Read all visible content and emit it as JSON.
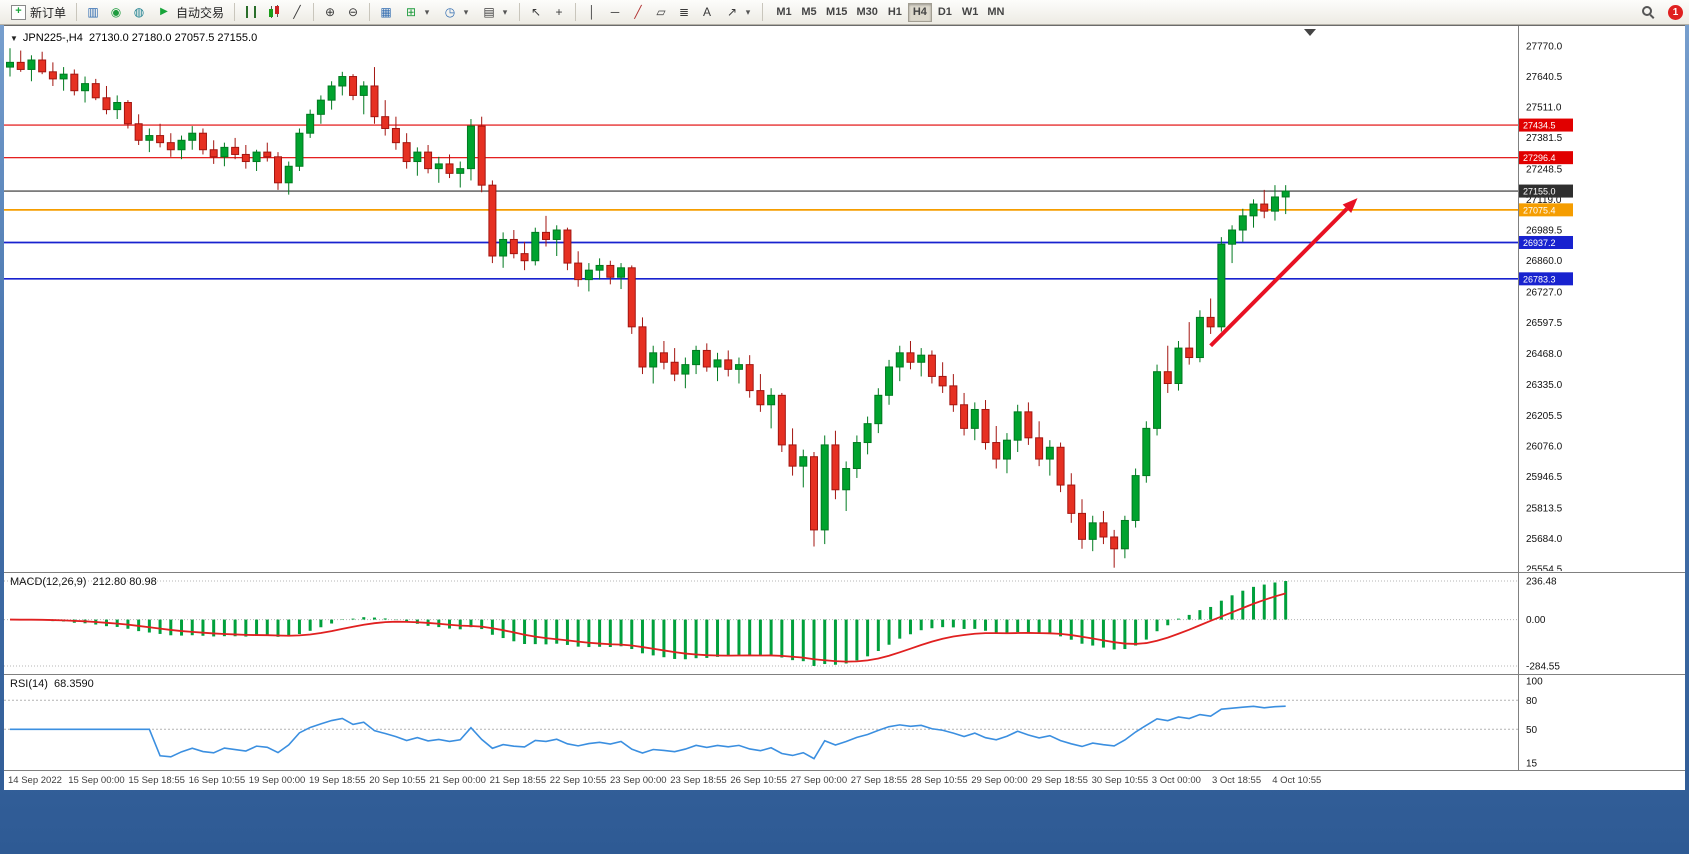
{
  "toolbar": {
    "new_order_label": "新订单",
    "auto_trading_label": "自动交易",
    "timeframes": [
      "M1",
      "M5",
      "M15",
      "M30",
      "H1",
      "H4",
      "D1",
      "W1",
      "MN"
    ],
    "active_timeframe": "H4",
    "notification_count": "1",
    "glyphs": {
      "chart_menu": "▼",
      "new_order": "+",
      "charts": "▥",
      "alerts": "◉",
      "community": "◍",
      "auto_trading": "▶",
      "line_chart": "╱",
      "zoom_in": "⊕",
      "zoom_out": "⊖",
      "tile_windows": "▦",
      "indicators": "⊞",
      "periods": "◷",
      "templates": "▤",
      "dropdown": "▾",
      "cursor": "↖",
      "crosshair": "+",
      "vline": "│",
      "hline": "─",
      "trendline": "╱",
      "channel": "▱",
      "fibonacci": "≣",
      "text_tool": "A",
      "arrows_tool": "↗"
    }
  },
  "chart": {
    "symbol_period": "JPN225-,H4",
    "ohlc": "27130.0 27180.0 27057.5 27155.0"
  },
  "chart_data": {
    "type": "candlestick",
    "title": "JPN225-,H4",
    "symbol": "JPN225-",
    "period": "H4",
    "last_ohlc": {
      "open": 27130.0,
      "high": 27180.0,
      "low": 27057.5,
      "close": 27155.0
    },
    "price_ticks": [
      27770.0,
      27640.5,
      27511.0,
      27381.5,
      27248.5,
      27119.0,
      26989.5,
      26860.0,
      26727.0,
      26597.5,
      26468.0,
      26335.0,
      26205.5,
      26076.0,
      25946.5,
      25813.5,
      25684.0,
      25554.5
    ],
    "hlines": [
      {
        "value": 27434.5,
        "label": "27434.5",
        "color": "#e10000",
        "width": 1.2
      },
      {
        "value": 27296.4,
        "label": "27296.4",
        "color": "#e10000",
        "width": 1.2
      },
      {
        "value": 27155.0,
        "label": "27155.0",
        "color": "#2f2f2f",
        "width": 1.2
      },
      {
        "value": 27075.4,
        "label": "27075.4",
        "color": "#f59d00",
        "width": 1.7
      },
      {
        "value": 26937.2,
        "label": "26937.2",
        "color": "#1822cf",
        "width": 1.7
      },
      {
        "value": 26783.3,
        "label": "26783.3",
        "color": "#1822cf",
        "width": 1.7
      }
    ],
    "arrow": {
      "i1": 112,
      "p1": 26500,
      "i2": 125.7,
      "p2": 27125,
      "color": "#e81123"
    },
    "time_labels": [
      "14 Sep 2022",
      "15 Sep 00:00",
      "15 Sep 18:55",
      "16 Sep 10:55",
      "19 Sep 00:00",
      "19 Sep 18:55",
      "20 Sep 10:55",
      "21 Sep 00:00",
      "21 Sep 18:55",
      "22 Sep 10:55",
      "23 Sep 00:00",
      "23 Sep 18:55",
      "26 Sep 10:55",
      "27 Sep 00:00",
      "27 Sep 18:55",
      "28 Sep 10:55",
      "29 Sep 00:00",
      "29 Sep 18:55",
      "30 Sep 10:55",
      "3 Oct 00:00",
      "3 Oct 18:55",
      "4 Oct 10:55"
    ],
    "candles": [
      [
        27680,
        27760,
        27640,
        27700
      ],
      [
        27700,
        27750,
        27660,
        27670
      ],
      [
        27670,
        27730,
        27620,
        27710
      ],
      [
        27710,
        27745,
        27650,
        27660
      ],
      [
        27660,
        27700,
        27600,
        27630
      ],
      [
        27630,
        27680,
        27580,
        27650
      ],
      [
        27650,
        27670,
        27560,
        27580
      ],
      [
        27580,
        27640,
        27530,
        27610
      ],
      [
        27610,
        27630,
        27540,
        27550
      ],
      [
        27550,
        27600,
        27480,
        27500
      ],
      [
        27500,
        27560,
        27460,
        27530
      ],
      [
        27530,
        27540,
        27420,
        27440
      ],
      [
        27440,
        27480,
        27350,
        27370
      ],
      [
        27370,
        27420,
        27320,
        27390
      ],
      [
        27390,
        27440,
        27340,
        27360
      ],
      [
        27360,
        27400,
        27300,
        27330
      ],
      [
        27330,
        27390,
        27290,
        27370
      ],
      [
        27370,
        27430,
        27330,
        27400
      ],
      [
        27400,
        27420,
        27310,
        27330
      ],
      [
        27330,
        27370,
        27270,
        27300
      ],
      [
        27300,
        27360,
        27260,
        27340
      ],
      [
        27340,
        27380,
        27290,
        27310
      ],
      [
        27310,
        27350,
        27250,
        27280
      ],
      [
        27280,
        27330,
        27240,
        27320
      ],
      [
        27320,
        27360,
        27280,
        27300
      ],
      [
        27300,
        27320,
        27160,
        27190
      ],
      [
        27190,
        27280,
        27140,
        27260
      ],
      [
        27260,
        27420,
        27240,
        27400
      ],
      [
        27400,
        27500,
        27380,
        27480
      ],
      [
        27480,
        27560,
        27440,
        27540
      ],
      [
        27540,
        27620,
        27500,
        27600
      ],
      [
        27600,
        27660,
        27560,
        27640
      ],
      [
        27640,
        27650,
        27540,
        27560
      ],
      [
        27560,
        27620,
        27480,
        27600
      ],
      [
        27600,
        27680,
        27440,
        27470
      ],
      [
        27470,
        27540,
        27390,
        27420
      ],
      [
        27420,
        27470,
        27330,
        27360
      ],
      [
        27360,
        27400,
        27250,
        27280
      ],
      [
        27280,
        27340,
        27220,
        27320
      ],
      [
        27320,
        27350,
        27230,
        27250
      ],
      [
        27250,
        27300,
        27190,
        27270
      ],
      [
        27270,
        27310,
        27210,
        27230
      ],
      [
        27230,
        27280,
        27170,
        27250
      ],
      [
        27250,
        27460,
        27200,
        27430
      ],
      [
        27430,
        27470,
        27150,
        27180
      ],
      [
        27180,
        27200,
        26850,
        26880
      ],
      [
        26880,
        26980,
        26830,
        26950
      ],
      [
        26950,
        26990,
        26870,
        26890
      ],
      [
        26890,
        26940,
        26820,
        26860
      ],
      [
        26860,
        27000,
        26840,
        26980
      ],
      [
        26980,
        27050,
        26920,
        26950
      ],
      [
        26950,
        27010,
        26880,
        26990
      ],
      [
        26990,
        27000,
        26820,
        26850
      ],
      [
        26850,
        26900,
        26750,
        26780
      ],
      [
        26780,
        26850,
        26730,
        26820
      ],
      [
        26820,
        26870,
        26780,
        26840
      ],
      [
        26840,
        26860,
        26760,
        26790
      ],
      [
        26790,
        26850,
        26740,
        26830
      ],
      [
        26830,
        26840,
        26550,
        26580
      ],
      [
        26580,
        26620,
        26380,
        26410
      ],
      [
        26410,
        26500,
        26340,
        26470
      ],
      [
        26470,
        26520,
        26400,
        26430
      ],
      [
        26430,
        26490,
        26350,
        26380
      ],
      [
        26380,
        26450,
        26320,
        26420
      ],
      [
        26420,
        26500,
        26380,
        26480
      ],
      [
        26480,
        26510,
        26390,
        26410
      ],
      [
        26410,
        26470,
        26350,
        26440
      ],
      [
        26440,
        26480,
        26370,
        26400
      ],
      [
        26400,
        26450,
        26340,
        26420
      ],
      [
        26420,
        26460,
        26280,
        26310
      ],
      [
        26310,
        26380,
        26220,
        26250
      ],
      [
        26250,
        26320,
        26150,
        26290
      ],
      [
        26290,
        26300,
        26050,
        26080
      ],
      [
        26080,
        26150,
        25950,
        25990
      ],
      [
        25990,
        26060,
        25900,
        26030
      ],
      [
        26030,
        26050,
        25650,
        25720
      ],
      [
        25720,
        26120,
        25660,
        26080
      ],
      [
        26080,
        26140,
        25850,
        25890
      ],
      [
        25890,
        26010,
        25800,
        25980
      ],
      [
        25980,
        26120,
        25940,
        26090
      ],
      [
        26090,
        26200,
        26040,
        26170
      ],
      [
        26170,
        26320,
        26130,
        26290
      ],
      [
        26290,
        26440,
        26250,
        26410
      ],
      [
        26410,
        26500,
        26350,
        26470
      ],
      [
        26470,
        26520,
        26400,
        26430
      ],
      [
        26430,
        26490,
        26370,
        26460
      ],
      [
        26460,
        26480,
        26340,
        26370
      ],
      [
        26370,
        26430,
        26300,
        26330
      ],
      [
        26330,
        26380,
        26220,
        26250
      ],
      [
        26250,
        26300,
        26120,
        26150
      ],
      [
        26150,
        26260,
        26100,
        26230
      ],
      [
        26230,
        26270,
        26060,
        26090
      ],
      [
        26090,
        26160,
        25980,
        26020
      ],
      [
        26020,
        26130,
        25960,
        26100
      ],
      [
        26100,
        26250,
        26050,
        26220
      ],
      [
        26220,
        26260,
        26080,
        26110
      ],
      [
        26110,
        26180,
        25990,
        26020
      ],
      [
        26020,
        26100,
        25950,
        26070
      ],
      [
        26070,
        26090,
        25880,
        25910
      ],
      [
        25910,
        25960,
        25750,
        25790
      ],
      [
        25790,
        25850,
        25640,
        25680
      ],
      [
        25680,
        25780,
        25630,
        25750
      ],
      [
        25750,
        25800,
        25660,
        25690
      ],
      [
        25690,
        25720,
        25560,
        25640
      ],
      [
        25640,
        25780,
        25600,
        25760
      ],
      [
        25760,
        25980,
        25730,
        25950
      ],
      [
        25950,
        26180,
        25920,
        26150
      ],
      [
        26150,
        26420,
        26120,
        26390
      ],
      [
        26390,
        26500,
        26300,
        26340
      ],
      [
        26340,
        26520,
        26310,
        26490
      ],
      [
        26490,
        26600,
        26420,
        26450
      ],
      [
        26450,
        26650,
        26430,
        26620
      ],
      [
        26620,
        26700,
        26550,
        26580
      ],
      [
        26580,
        26960,
        26560,
        26930
      ],
      [
        26930,
        27010,
        26850,
        26990
      ],
      [
        26990,
        27080,
        26940,
        27050
      ],
      [
        27050,
        27120,
        27000,
        27100
      ],
      [
        27100,
        27160,
        27040,
        27070
      ],
      [
        27070,
        27180,
        27030,
        27130
      ],
      [
        27130,
        27180,
        27057.5,
        27155
      ]
    ],
    "macd": {
      "label": "MACD(12,26,9)",
      "values": "212.80 80.98",
      "fast": 12,
      "slow": 26,
      "signal": 9,
      "ticks": [
        {
          "label": "236.48",
          "value": 236.48
        },
        {
          "label": "0.00",
          "value": 0
        },
        {
          "label": "-284.55",
          "value": -284.55
        }
      ]
    },
    "rsi": {
      "label": "RSI(14)",
      "value": "68.3590",
      "period": 14,
      "ticks": [
        {
          "label": "100",
          "value": 100
        },
        {
          "label": "80",
          "value": 80
        },
        {
          "label": "50",
          "value": 50
        },
        {
          "label": "15",
          "value": 15
        }
      ],
      "levels": [
        80,
        50
      ]
    }
  }
}
